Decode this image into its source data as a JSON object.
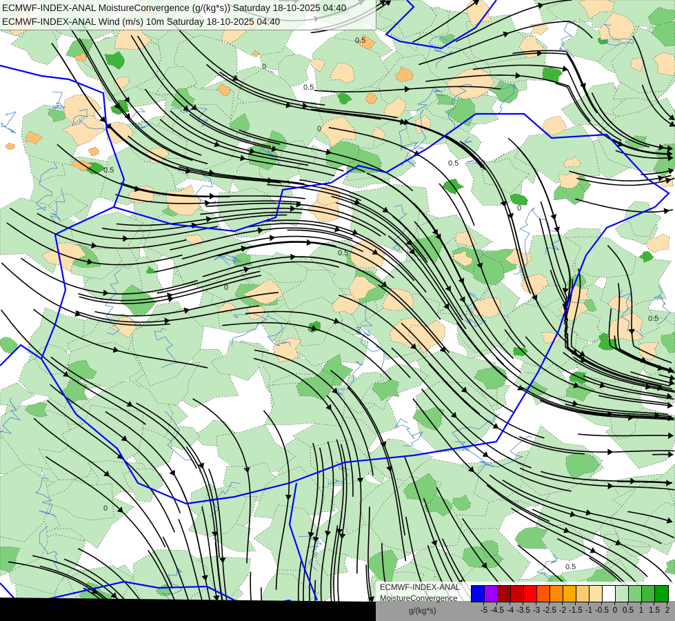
{
  "header": {
    "title_line_1": "ECMWF-INDEX-ANAL MoistureConvergence (g/(kg*s)) Saturday 18-10-2025 04:40",
    "title_line_2": "ECMWF-INDEX-ANAL Wind (m/s) 10m Saturday 18-10-2025 04:40"
  },
  "map": {
    "fill_colors": {
      "positive_light": "#c2e8c0",
      "positive_mid": "#7fcf7a",
      "positive_strong": "#3fb63a",
      "negative_light": "#fce0b0",
      "negative_mid": "#fbc070",
      "negative_strong": "#f5a623"
    },
    "streamline_color": "#000000",
    "border_color": "#0000ff",
    "river_color": "#4a7fd4",
    "contour_labels": [
      "0.5",
      "0",
      "0.5",
      "0",
      "0.5",
      "0.5",
      "0",
      "0.5",
      "0",
      "0.5",
      "0",
      "0.5"
    ]
  },
  "legend": {
    "line_1": "ECMWF-INDEX-ANAL",
    "line_2": "MoistureConvergence",
    "unit": "g/(kg*s)",
    "colors": [
      "#0000ff",
      "#9900ff",
      "#a00000",
      "#cc0000",
      "#ff0000",
      "#ff5500",
      "#ff8c00",
      "#ffaa00",
      "#fdc870",
      "#fde0a8",
      "#ffffff",
      "#c2e8c0",
      "#7fcf7a",
      "#3fb63a",
      "#00a000"
    ],
    "ticks": [
      "-5",
      "-4.5",
      "-4",
      "-3.5",
      "-3",
      "-2.5",
      "-2",
      "-1.5",
      "-1",
      "-0.5",
      "0",
      "0.5",
      "1",
      "1.5",
      "2"
    ]
  }
}
